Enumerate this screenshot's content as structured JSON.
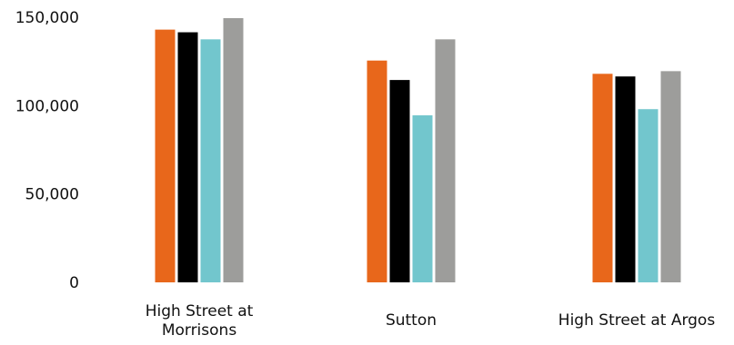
{
  "chart_data": {
    "type": "bar",
    "categories": [
      "High Street at Morrisons",
      "Sutton",
      "High Street at Argos"
    ],
    "category_label_lines": [
      [
        "High Street at",
        "Morrisons"
      ],
      [
        "Sutton"
      ],
      [
        "High Street at Argos"
      ]
    ],
    "series": [
      {
        "color": "#E8671B",
        "values": [
          143000,
          125500,
          118000
        ]
      },
      {
        "color": "#000000",
        "values": [
          141500,
          114500,
          116500
        ]
      },
      {
        "color": "#72C6CD",
        "values": [
          137500,
          94500,
          98000
        ]
      },
      {
        "color": "#9D9D9B",
        "values": [
          149500,
          137500,
          119500
        ]
      }
    ],
    "yticks": [
      {
        "value": 0,
        "label": "0"
      },
      {
        "value": 50000,
        "label": "50,000"
      },
      {
        "value": 100000,
        "label": "100,000"
      },
      {
        "value": 150000,
        "label": "150,000"
      }
    ],
    "ylim": [
      0,
      150000
    ],
    "grid": false,
    "legend": "none"
  }
}
